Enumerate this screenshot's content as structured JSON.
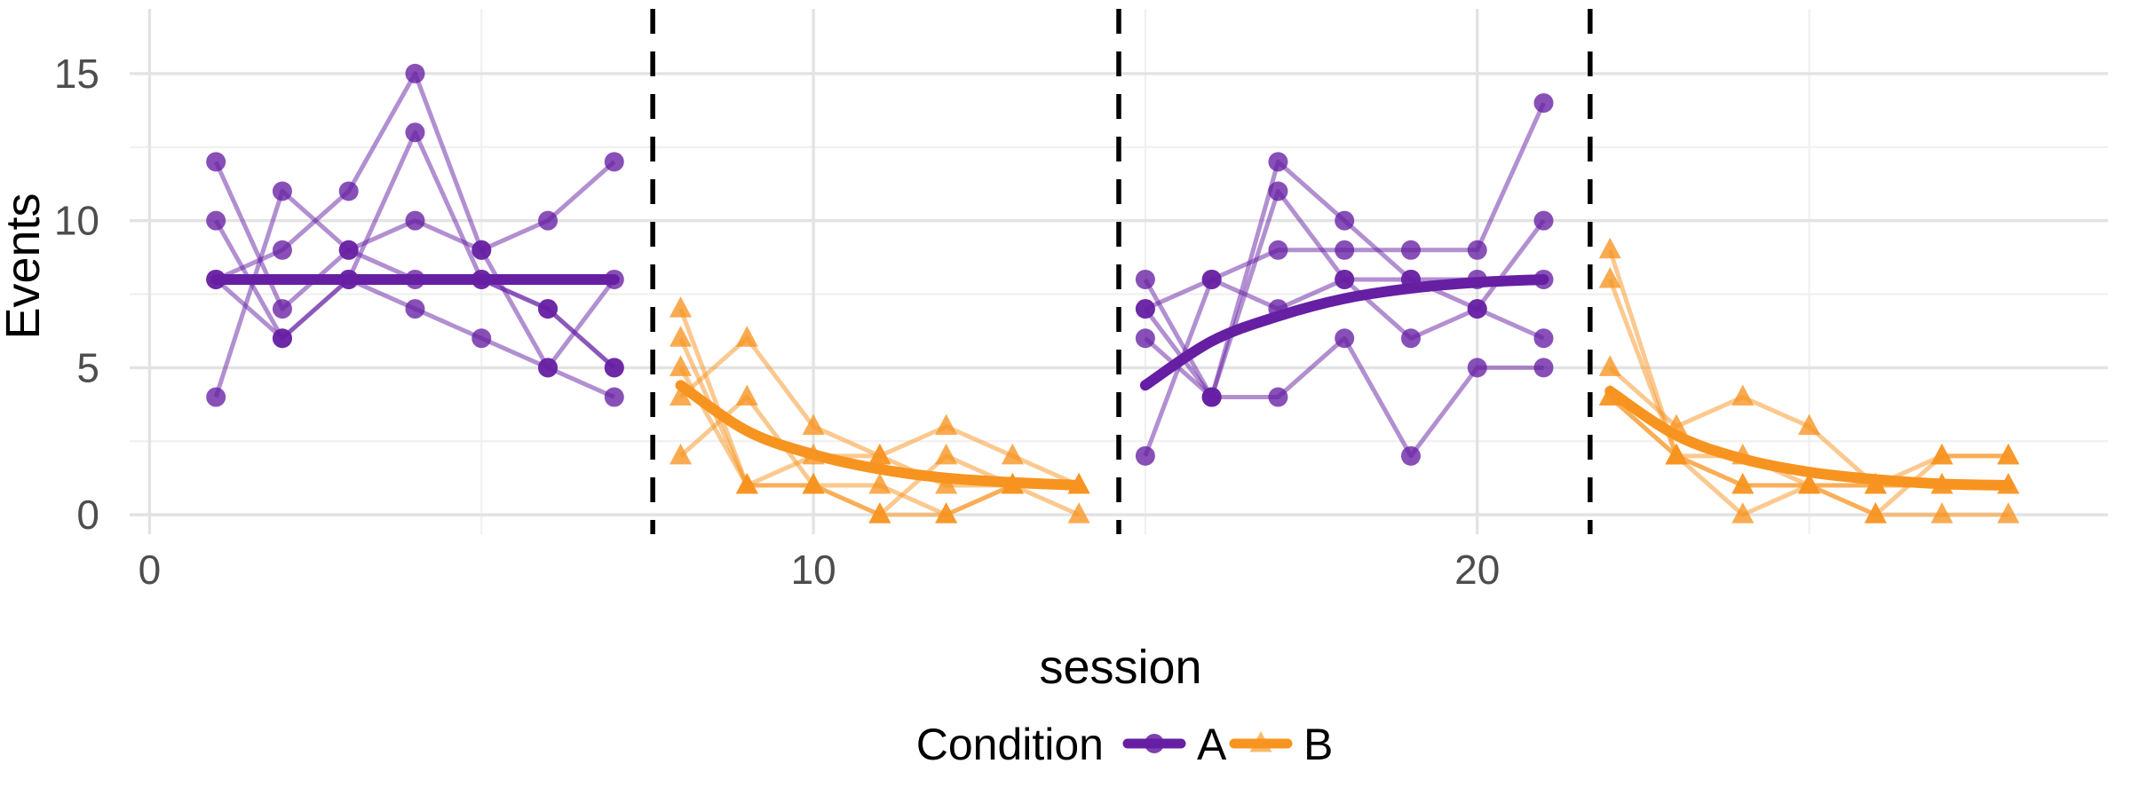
{
  "chart_data": {
    "type": "line",
    "title": "",
    "xlabel": "session",
    "ylabel": "Events",
    "x_ticks": [
      0,
      10,
      20
    ],
    "x_minor_gridlines": [
      5,
      15,
      25
    ],
    "y_ticks": [
      0,
      5,
      10,
      15
    ],
    "y_minor_gridlines": [
      2.5,
      7.5,
      12.5
    ],
    "xlim": [
      -0.3,
      29.5
    ],
    "ylim": [
      -0.66,
      17.2
    ],
    "grid": true,
    "legend": {
      "title": "Condition",
      "position": "bottom",
      "entries": [
        {
          "label": "A",
          "marker": "circle"
        },
        {
          "label": "B",
          "marker": "triangle"
        }
      ]
    },
    "colors": {
      "A": "#661FA3",
      "B": "#F79420",
      "grid_major": "#E3E3E3",
      "grid_minor": "#F0F0F0",
      "phase_line": "#000000",
      "tick_text": "#4D4D4D"
    },
    "phase_boundaries_x": [
      7.58,
      14.6,
      21.7
    ],
    "phases": [
      {
        "name": "A1",
        "condition": "A",
        "session_start": 1,
        "session_end": 7
      },
      {
        "name": "B1",
        "condition": "B",
        "session_start": 8,
        "session_end": 14
      },
      {
        "name": "A2",
        "condition": "A",
        "session_start": 15,
        "session_end": 21
      },
      {
        "name": "B2",
        "condition": "B",
        "session_start": 22,
        "session_end": 28
      }
    ],
    "cases": [
      {
        "id": "case-1",
        "A1": [
          12,
          7,
          9,
          8,
          8,
          7,
          5
        ],
        "B1": [
          7,
          1,
          1,
          0,
          0,
          1,
          1
        ],
        "A2": [
          8,
          4,
          12,
          10,
          8,
          7,
          10
        ],
        "B2": [
          9,
          2,
          1,
          1,
          0,
          2,
          2
        ]
      },
      {
        "id": "case-2",
        "A1": [
          10,
          6,
          8,
          7,
          6,
          5,
          4
        ],
        "B1": [
          6,
          1,
          2,
          2,
          1,
          1,
          0
        ],
        "A2": [
          7,
          8,
          9,
          9,
          9,
          9,
          14
        ],
        "B2": [
          8,
          2,
          2,
          1,
          1,
          1,
          1
        ]
      },
      {
        "id": "case-3",
        "A1": [
          8,
          9,
          11,
          15,
          9,
          10,
          12
        ],
        "B1": [
          5,
          1,
          1,
          1,
          0,
          1,
          1
        ],
        "A2": [
          7,
          4,
          11,
          8,
          8,
          8,
          8
        ],
        "B2": [
          5,
          3,
          4,
          3,
          1,
          2,
          2
        ]
      },
      {
        "id": "case-4",
        "A1": [
          8,
          6,
          8,
          13,
          8,
          7,
          5
        ],
        "B1": [
          4,
          6,
          3,
          2,
          3,
          2,
          1
        ],
        "A2": [
          6,
          4,
          4,
          6,
          2,
          5,
          5
        ],
        "B2": [
          4,
          2,
          1,
          1,
          1,
          1,
          1
        ]
      },
      {
        "id": "case-5",
        "A1": [
          4,
          11,
          9,
          10,
          9,
          5,
          8
        ],
        "B1": [
          2,
          4,
          1,
          0,
          2,
          1,
          1
        ],
        "A2": [
          2,
          8,
          7,
          8,
          6,
          7,
          6
        ],
        "B2": [
          4,
          2,
          0,
          1,
          0,
          0,
          0
        ]
      }
    ],
    "trends": [
      {
        "phase": "A1",
        "condition": "A",
        "session_start": 1,
        "values": [
          8,
          8,
          8,
          8,
          8,
          8,
          8
        ]
      },
      {
        "phase": "B1",
        "condition": "B",
        "session_start": 8,
        "values": [
          4.4,
          2.85,
          2.05,
          1.55,
          1.25,
          1.1,
          1.0
        ]
      },
      {
        "phase": "A2",
        "condition": "A",
        "session_start": 15,
        "values": [
          4.4,
          5.9,
          6.75,
          7.35,
          7.7,
          7.9,
          8.0
        ]
      },
      {
        "phase": "B2",
        "condition": "B",
        "session_start": 22,
        "values": [
          4.2,
          2.7,
          1.9,
          1.45,
          1.2,
          1.05,
          1.0
        ]
      }
    ],
    "style": {
      "case_line_opacity": 0.5,
      "marker_opacity": 0.78,
      "case_line_width": 5,
      "trend_line_width": 12,
      "phase_line_width": 5.5,
      "phase_line_dash": "28 20",
      "marker_radius": 11
    }
  }
}
